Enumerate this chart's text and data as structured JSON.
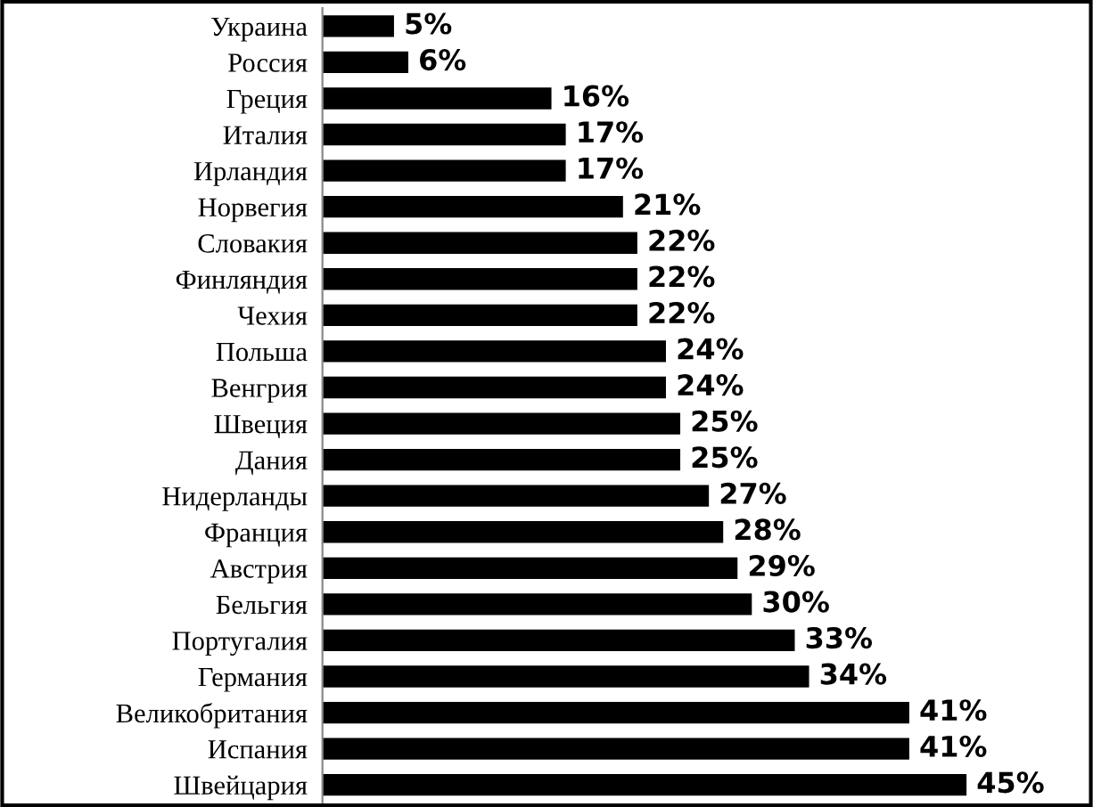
{
  "chart_data": {
    "type": "bar",
    "orientation": "horizontal",
    "categories": [
      "Украина",
      "Россия",
      "Греция",
      "Италия",
      "Ирландия",
      "Норвегия",
      "Словакия",
      "Финляндия",
      "Чехия",
      "Польша",
      "Венгрия",
      "Швеция",
      "Дания",
      "Нидерланды",
      "Франция",
      "Австрия",
      "Бельгия",
      "Португалия",
      "Германия",
      "Великобритания",
      "Испания",
      "Швейцария"
    ],
    "values": [
      5,
      6,
      16,
      17,
      17,
      21,
      22,
      22,
      22,
      24,
      24,
      25,
      25,
      27,
      28,
      29,
      30,
      33,
      34,
      41,
      41,
      45
    ],
    "value_labels": [
      "5%",
      "6%",
      "16%",
      "17%",
      "17%",
      "21%",
      "22%",
      "22%",
      "22%",
      "24%",
      "24%",
      "25%",
      "25%",
      "27%",
      "28%",
      "29%",
      "30%",
      "33%",
      "34%",
      "41%",
      "41%",
      "45%"
    ],
    "color": "#000000",
    "grid": false,
    "legend": false
  }
}
